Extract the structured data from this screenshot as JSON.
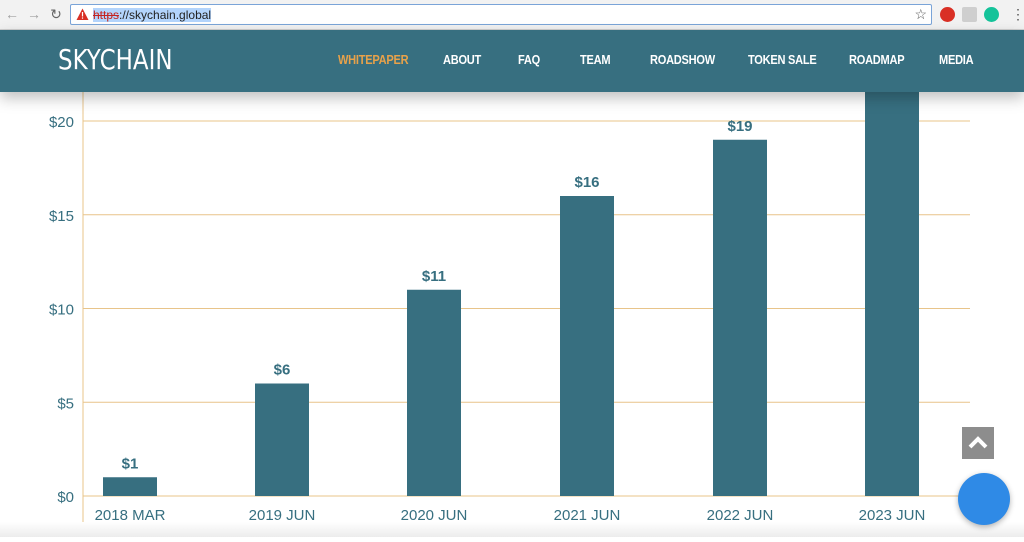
{
  "browser": {
    "back_icon": "arrow-left-icon",
    "forward_icon": "arrow-right-icon",
    "reload_icon": "reload-icon",
    "url_scheme": "https",
    "url_sep": "://",
    "url_host": "skychain.global",
    "bookmark_icon": "star-icon",
    "extensions": [
      "extension-red-icon",
      "extension-envelope-icon",
      "grammarly-icon"
    ],
    "menu_icon": "more-vert-icon"
  },
  "header": {
    "logo": "SKYCHAIN",
    "nav": [
      {
        "label": "WHITEPAPER",
        "active": true
      },
      {
        "label": "ABOUT",
        "active": false
      },
      {
        "label": "FAQ",
        "active": false
      },
      {
        "label": "TEAM",
        "active": false
      },
      {
        "label": "ROADSHOW",
        "active": false
      },
      {
        "label": "TOKEN SALE",
        "active": false
      },
      {
        "label": "ROADMAP",
        "active": false
      },
      {
        "label": "MEDIA",
        "active": false
      }
    ],
    "colors": {
      "bar": "#376f80",
      "active": "#e8a24a"
    }
  },
  "chart_data": {
    "type": "bar",
    "categories": [
      "2018 MAR",
      "2019 JUN",
      "2020 JUN",
      "2021 JUN",
      "2022 JUN",
      "2023 JUN"
    ],
    "values": [
      1,
      6,
      11,
      16,
      19,
      22
    ],
    "data_labels": [
      "$1",
      "$6",
      "$11",
      "$16",
      "$19",
      ""
    ],
    "yticks": [
      "$0",
      "$5",
      "$10",
      "$15",
      "$20"
    ],
    "ytick_values": [
      0,
      5,
      10,
      15,
      20
    ],
    "ylim": [
      0,
      20.6
    ],
    "grid": true,
    "colors": {
      "bar": "#376f80",
      "grid": "#e8c48a",
      "label": "#376f80"
    }
  },
  "widgets": {
    "scroll_top_icon": "chevron-up-icon",
    "chat_button": "chat-bubble-icon"
  }
}
